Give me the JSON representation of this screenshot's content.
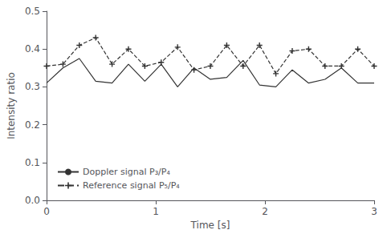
{
  "chart_data": {
    "type": "line",
    "xlabel": "Time [s]",
    "ylabel": "Intensity ratio",
    "x": [
      0,
      0.15,
      0.3,
      0.45,
      0.6,
      0.75,
      0.9,
      1.05,
      1.2,
      1.35,
      1.5,
      1.65,
      1.8,
      1.95,
      2.1,
      2.25,
      2.4,
      2.55,
      2.7,
      2.85,
      3.0
    ],
    "series": [
      {
        "name": "Doppler signal P₃/P₄",
        "color": "#333333",
        "line_style": "solid",
        "marker": "none",
        "values": [
          0.31,
          0.35,
          0.375,
          0.315,
          0.31,
          0.36,
          0.315,
          0.36,
          0.3,
          0.35,
          0.32,
          0.325,
          0.37,
          0.305,
          0.3,
          0.345,
          0.31,
          0.32,
          0.35,
          0.31,
          0.31
        ]
      },
      {
        "name": "Reference signal P₅/P₄",
        "color": "#333333",
        "line_style": "dashed",
        "marker": "plus",
        "values": [
          0.355,
          0.36,
          0.41,
          0.43,
          0.36,
          0.4,
          0.355,
          0.365,
          0.405,
          0.345,
          0.355,
          0.41,
          0.355,
          0.41,
          0.335,
          0.395,
          0.4,
          0.355,
          0.355,
          0.4,
          0.355
        ]
      }
    ],
    "xlim": [
      0,
      3
    ],
    "ylim": [
      0,
      0.5
    ],
    "xticks": [
      0,
      1,
      2,
      3
    ],
    "yticks": [
      {
        "value": 0,
        "label": "0.0"
      },
      0.1,
      0.2,
      0.3,
      0.4,
      0.5
    ],
    "grid": false,
    "legend": "lower left"
  }
}
